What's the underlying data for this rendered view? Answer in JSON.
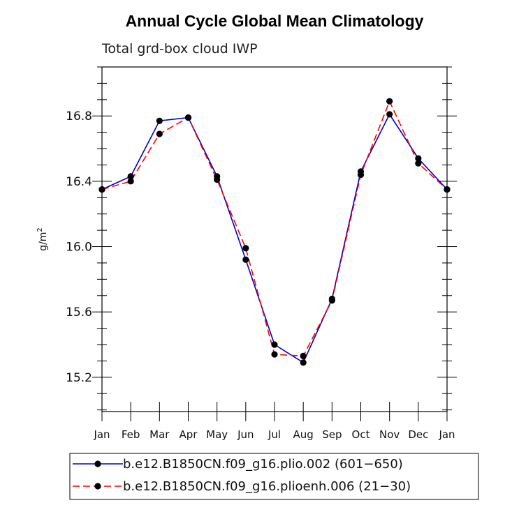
{
  "chart_data": {
    "type": "line",
    "title": "Annual Cycle Global Mean Climatology",
    "subtitle": "Total grd-box cloud IWP",
    "ylabel_base": "g/m",
    "ylabel_sup": "2",
    "categories": [
      "Jan",
      "Feb",
      "Mar",
      "Apr",
      "May",
      "Jun",
      "Jul",
      "Aug",
      "Sep",
      "Oct",
      "Nov",
      "Dec",
      "Jan"
    ],
    "ylim": [
      14.99,
      17.1
    ],
    "yticks": [
      15.2,
      15.6,
      16.0,
      16.4,
      16.8
    ],
    "ytick_labels": [
      "15.2",
      "15.6",
      "16.0",
      "16.4",
      "16.8"
    ],
    "series": [
      {
        "name": "b.e12.B1850CN.f09_g16.plio.002 (601−650)",
        "color": "#0000cc",
        "dash": "solid",
        "values": [
          16.35,
          16.43,
          16.77,
          16.79,
          16.43,
          15.92,
          15.4,
          15.29,
          15.68,
          16.46,
          16.81,
          16.54,
          16.35
        ]
      },
      {
        "name": "b.e12.B1850CN.f09_g16.plioenh.006 (21−30)",
        "color": "#ff0000",
        "dash": "dashed",
        "values": [
          16.35,
          16.4,
          16.69,
          16.79,
          16.41,
          15.99,
          15.34,
          15.33,
          15.67,
          16.44,
          16.89,
          16.51,
          16.35
        ]
      }
    ],
    "grid": false,
    "legend_position": "bottom"
  }
}
